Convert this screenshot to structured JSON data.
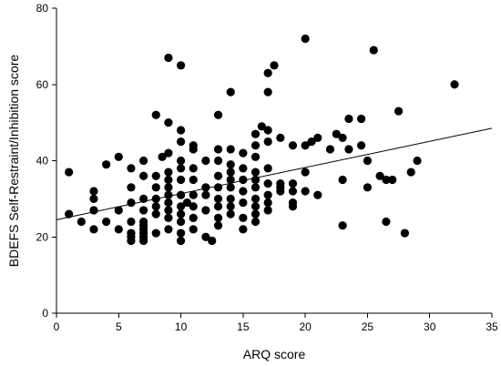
{
  "chart_data": {
    "type": "scatter",
    "xlabel": "ARQ score",
    "ylabel": "BDEFS Self-Restraint/Inhibition score",
    "xlim": [
      0,
      35
    ],
    "ylim": [
      0,
      80
    ],
    "xticks": [
      0,
      5,
      10,
      15,
      20,
      25,
      30,
      35
    ],
    "yticks": [
      0,
      20,
      40,
      60,
      80
    ],
    "grid": false,
    "trendline": {
      "x": [
        0,
        35
      ],
      "y": [
        24.5,
        48.5
      ]
    },
    "points": [
      {
        "x": 1,
        "y": 37
      },
      {
        "x": 1,
        "y": 26
      },
      {
        "x": 2,
        "y": 24
      },
      {
        "x": 3,
        "y": 32
      },
      {
        "x": 3,
        "y": 30
      },
      {
        "x": 3,
        "y": 27
      },
      {
        "x": 3,
        "y": 22
      },
      {
        "x": 4,
        "y": 39
      },
      {
        "x": 4,
        "y": 24
      },
      {
        "x": 5,
        "y": 41
      },
      {
        "x": 5,
        "y": 27
      },
      {
        "x": 5,
        "y": 22
      },
      {
        "x": 6,
        "y": 38
      },
      {
        "x": 6,
        "y": 33
      },
      {
        "x": 6,
        "y": 29
      },
      {
        "x": 6,
        "y": 24
      },
      {
        "x": 6,
        "y": 21
      },
      {
        "x": 6,
        "y": 20
      },
      {
        "x": 6,
        "y": 19
      },
      {
        "x": 7,
        "y": 40
      },
      {
        "x": 7,
        "y": 36
      },
      {
        "x": 7,
        "y": 30
      },
      {
        "x": 7,
        "y": 27
      },
      {
        "x": 7,
        "y": 24
      },
      {
        "x": 7,
        "y": 23
      },
      {
        "x": 7,
        "y": 22
      },
      {
        "x": 7,
        "y": 21
      },
      {
        "x": 7,
        "y": 20
      },
      {
        "x": 7,
        "y": 19
      },
      {
        "x": 8,
        "y": 52
      },
      {
        "x": 8,
        "y": 36
      },
      {
        "x": 8,
        "y": 33
      },
      {
        "x": 8,
        "y": 30
      },
      {
        "x": 8,
        "y": 28
      },
      {
        "x": 8,
        "y": 26
      },
      {
        "x": 8,
        "y": 21
      },
      {
        "x": 8.5,
        "y": 41
      },
      {
        "x": 9,
        "y": 67
      },
      {
        "x": 9,
        "y": 50
      },
      {
        "x": 9,
        "y": 42
      },
      {
        "x": 9,
        "y": 37
      },
      {
        "x": 9,
        "y": 35
      },
      {
        "x": 9,
        "y": 33
      },
      {
        "x": 9,
        "y": 31
      },
      {
        "x": 9,
        "y": 29
      },
      {
        "x": 9,
        "y": 27
      },
      {
        "x": 9,
        "y": 25
      },
      {
        "x": 9,
        "y": 22
      },
      {
        "x": 10,
        "y": 65
      },
      {
        "x": 10,
        "y": 48
      },
      {
        "x": 10,
        "y": 45
      },
      {
        "x": 10,
        "y": 40
      },
      {
        "x": 10,
        "y": 38
      },
      {
        "x": 10,
        "y": 35
      },
      {
        "x": 10,
        "y": 31
      },
      {
        "x": 10,
        "y": 28
      },
      {
        "x": 10,
        "y": 26
      },
      {
        "x": 10,
        "y": 24
      },
      {
        "x": 10,
        "y": 21
      },
      {
        "x": 10,
        "y": 19
      },
      {
        "x": 10.5,
        "y": 29
      },
      {
        "x": 11,
        "y": 44
      },
      {
        "x": 11,
        "y": 43
      },
      {
        "x": 11,
        "y": 38
      },
      {
        "x": 11,
        "y": 35
      },
      {
        "x": 11,
        "y": 31
      },
      {
        "x": 11,
        "y": 28
      },
      {
        "x": 11,
        "y": 25
      },
      {
        "x": 11,
        "y": 22
      },
      {
        "x": 12,
        "y": 40
      },
      {
        "x": 12,
        "y": 33
      },
      {
        "x": 12,
        "y": 31
      },
      {
        "x": 12,
        "y": 27
      },
      {
        "x": 12,
        "y": 20
      },
      {
        "x": 12.5,
        "y": 19
      },
      {
        "x": 13,
        "y": 52
      },
      {
        "x": 13,
        "y": 43
      },
      {
        "x": 13,
        "y": 40
      },
      {
        "x": 13,
        "y": 36
      },
      {
        "x": 13,
        "y": 33
      },
      {
        "x": 13,
        "y": 30
      },
      {
        "x": 13,
        "y": 28
      },
      {
        "x": 13,
        "y": 25
      },
      {
        "x": 13,
        "y": 23
      },
      {
        "x": 14,
        "y": 58
      },
      {
        "x": 14,
        "y": 43
      },
      {
        "x": 14,
        "y": 39
      },
      {
        "x": 14,
        "y": 37
      },
      {
        "x": 14,
        "y": 35
      },
      {
        "x": 14,
        "y": 33
      },
      {
        "x": 14,
        "y": 30
      },
      {
        "x": 14,
        "y": 28
      },
      {
        "x": 14,
        "y": 26
      },
      {
        "x": 15,
        "y": 42
      },
      {
        "x": 15,
        "y": 38
      },
      {
        "x": 15,
        "y": 35
      },
      {
        "x": 15,
        "y": 32
      },
      {
        "x": 15,
        "y": 29
      },
      {
        "x": 15,
        "y": 25
      },
      {
        "x": 15,
        "y": 22
      },
      {
        "x": 16,
        "y": 47
      },
      {
        "x": 16,
        "y": 44
      },
      {
        "x": 16,
        "y": 41
      },
      {
        "x": 16,
        "y": 37
      },
      {
        "x": 16,
        "y": 35
      },
      {
        "x": 16,
        "y": 33
      },
      {
        "x": 16,
        "y": 30
      },
      {
        "x": 16,
        "y": 28
      },
      {
        "x": 16,
        "y": 26
      },
      {
        "x": 16,
        "y": 24
      },
      {
        "x": 16.5,
        "y": 49
      },
      {
        "x": 17,
        "y": 63
      },
      {
        "x": 17,
        "y": 58
      },
      {
        "x": 17,
        "y": 48
      },
      {
        "x": 17,
        "y": 45
      },
      {
        "x": 17,
        "y": 38
      },
      {
        "x": 17,
        "y": 34
      },
      {
        "x": 17,
        "y": 31
      },
      {
        "x": 17,
        "y": 29
      },
      {
        "x": 17,
        "y": 27
      },
      {
        "x": 17.5,
        "y": 65
      },
      {
        "x": 18,
        "y": 46
      },
      {
        "x": 18,
        "y": 34
      },
      {
        "x": 18,
        "y": 33
      },
      {
        "x": 18,
        "y": 32
      },
      {
        "x": 19,
        "y": 44
      },
      {
        "x": 19,
        "y": 34
      },
      {
        "x": 19,
        "y": 32
      },
      {
        "x": 19,
        "y": 29
      },
      {
        "x": 19,
        "y": 28
      },
      {
        "x": 20,
        "y": 72
      },
      {
        "x": 20,
        "y": 44
      },
      {
        "x": 20,
        "y": 37
      },
      {
        "x": 20,
        "y": 32
      },
      {
        "x": 20.5,
        "y": 45
      },
      {
        "x": 21,
        "y": 46
      },
      {
        "x": 21,
        "y": 31
      },
      {
        "x": 22,
        "y": 43
      },
      {
        "x": 22.5,
        "y": 47
      },
      {
        "x": 23,
        "y": 46
      },
      {
        "x": 23,
        "y": 35
      },
      {
        "x": 23,
        "y": 23
      },
      {
        "x": 23.5,
        "y": 51
      },
      {
        "x": 23.5,
        "y": 43
      },
      {
        "x": 24.5,
        "y": 51
      },
      {
        "x": 24.5,
        "y": 44
      },
      {
        "x": 25,
        "y": 40
      },
      {
        "x": 25,
        "y": 33
      },
      {
        "x": 25.5,
        "y": 69
      },
      {
        "x": 26,
        "y": 36
      },
      {
        "x": 26.5,
        "y": 35
      },
      {
        "x": 26.5,
        "y": 24
      },
      {
        "x": 27,
        "y": 35
      },
      {
        "x": 27.5,
        "y": 53
      },
      {
        "x": 28,
        "y": 21
      },
      {
        "x": 28.5,
        "y": 37
      },
      {
        "x": 29,
        "y": 40
      },
      {
        "x": 32,
        "y": 60
      }
    ]
  }
}
